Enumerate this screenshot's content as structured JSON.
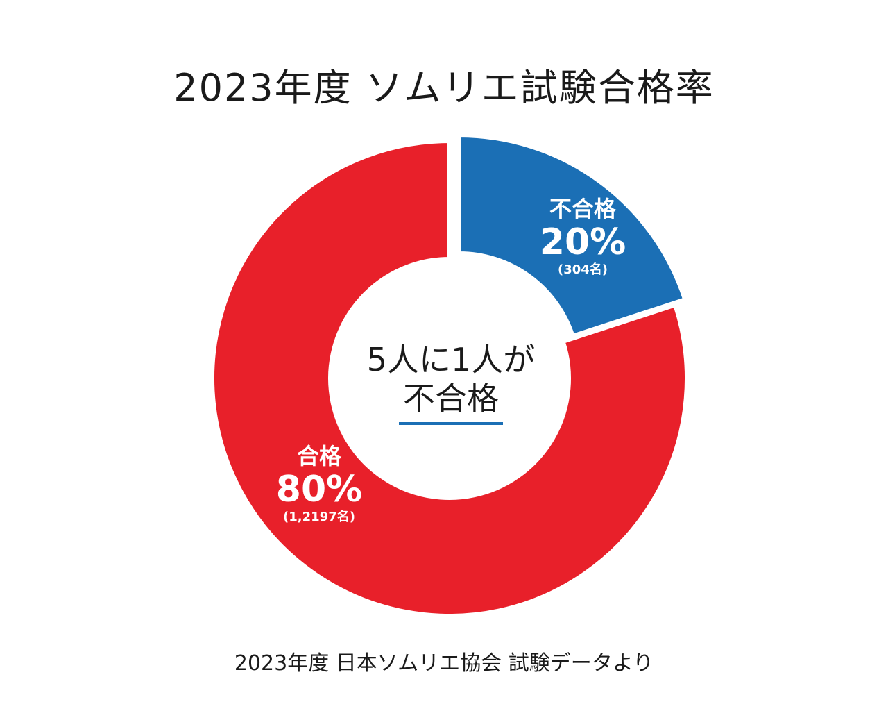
{
  "chart_data": {
    "type": "pie",
    "title": "2023年度 ソムリエ試験合格率",
    "center_label": {
      "line1": "5人に1人が",
      "line2": "不合格"
    },
    "slices": [
      {
        "label": "不合格",
        "percent": 20,
        "percent_label": "20%",
        "count_label": "(304名)",
        "color": "#1b6fb5"
      },
      {
        "label": "合格",
        "percent": 80,
        "percent_label": "80%",
        "count_label": "(1,2197名)",
        "color": "#e8202a"
      }
    ],
    "legend": "none"
  },
  "source": "2023年度 日本ソムリエ協会 試験データより"
}
